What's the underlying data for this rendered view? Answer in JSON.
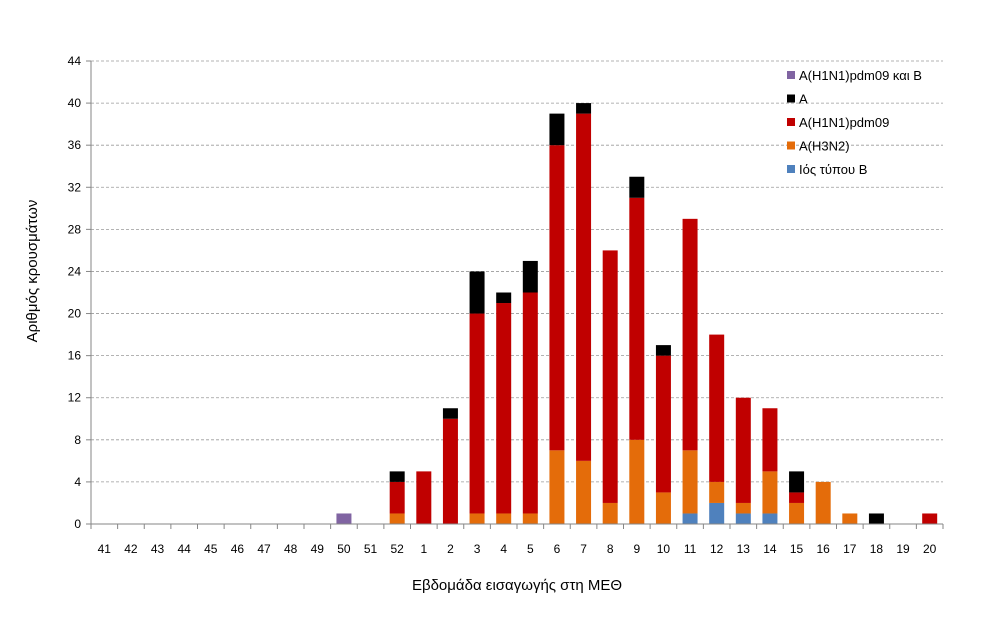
{
  "chart_data": {
    "type": "bar",
    "stacked": true,
    "xlabel": "Εβδομάδα εισαγωγής στη ΜΕΘ",
    "ylabel": "Αριθμός κρουσμάτων",
    "ylim": [
      0,
      44
    ],
    "yticks": [
      0,
      4,
      8,
      12,
      16,
      20,
      24,
      28,
      32,
      36,
      40,
      44
    ],
    "grid": "horizontal dashed",
    "legend_position": "top-right",
    "categories": [
      "41",
      "42",
      "43",
      "44",
      "45",
      "46",
      "47",
      "48",
      "49",
      "50",
      "51",
      "52",
      "1",
      "2",
      "3",
      "4",
      "5",
      "6",
      "7",
      "8",
      "9",
      "10",
      "11",
      "12",
      "13",
      "14",
      "15",
      "16",
      "17",
      "18",
      "19",
      "20"
    ],
    "series": [
      {
        "name": "Ιός τύπου Β",
        "color": "#4f81bd",
        "values": [
          0,
          0,
          0,
          0,
          0,
          0,
          0,
          0,
          0,
          0,
          0,
          0,
          0,
          0,
          0,
          0,
          0,
          0,
          0,
          0,
          0,
          0,
          1,
          2,
          1,
          1,
          0,
          0,
          0,
          0,
          0,
          0
        ]
      },
      {
        "name": "Α(Η3Ν2)",
        "color": "#e46c0a",
        "values": [
          0,
          0,
          0,
          0,
          0,
          0,
          0,
          0,
          0,
          0,
          0,
          1,
          0,
          0,
          1,
          1,
          1,
          7,
          6,
          2,
          8,
          3,
          6,
          2,
          1,
          4,
          2,
          4,
          1,
          0,
          0,
          0
        ]
      },
      {
        "name": "Α(Η1Ν1)pdm09",
        "color": "#c00000",
        "values": [
          0,
          0,
          0,
          0,
          0,
          0,
          0,
          0,
          0,
          0,
          0,
          3,
          5,
          10,
          19,
          20,
          21,
          29,
          33,
          24,
          23,
          13,
          22,
          14,
          10,
          6,
          1,
          0,
          0,
          0,
          0,
          1
        ]
      },
      {
        "name": "Α",
        "color": "#000000",
        "values": [
          0,
          0,
          0,
          0,
          0,
          0,
          0,
          0,
          0,
          0,
          0,
          1,
          0,
          1,
          4,
          1,
          3,
          3,
          1,
          0,
          2,
          1,
          0,
          0,
          0,
          0,
          2,
          0,
          0,
          1,
          0,
          0
        ]
      },
      {
        "name": "Α(Η1Ν1)pdm09 και Β",
        "color": "#8064a2",
        "values": [
          0,
          0,
          0,
          0,
          0,
          0,
          0,
          0,
          0,
          1,
          0,
          0,
          0,
          0,
          0,
          0,
          0,
          0,
          0,
          0,
          0,
          0,
          0,
          0,
          0,
          0,
          0,
          0,
          0,
          0,
          0,
          0
        ]
      }
    ],
    "legend_order": [
      "Α(Η1Ν1)pdm09 και Β",
      "Α",
      "Α(Η1Ν1)pdm09",
      "Α(Η3Ν2)",
      "Ιός τύπου Β"
    ]
  }
}
